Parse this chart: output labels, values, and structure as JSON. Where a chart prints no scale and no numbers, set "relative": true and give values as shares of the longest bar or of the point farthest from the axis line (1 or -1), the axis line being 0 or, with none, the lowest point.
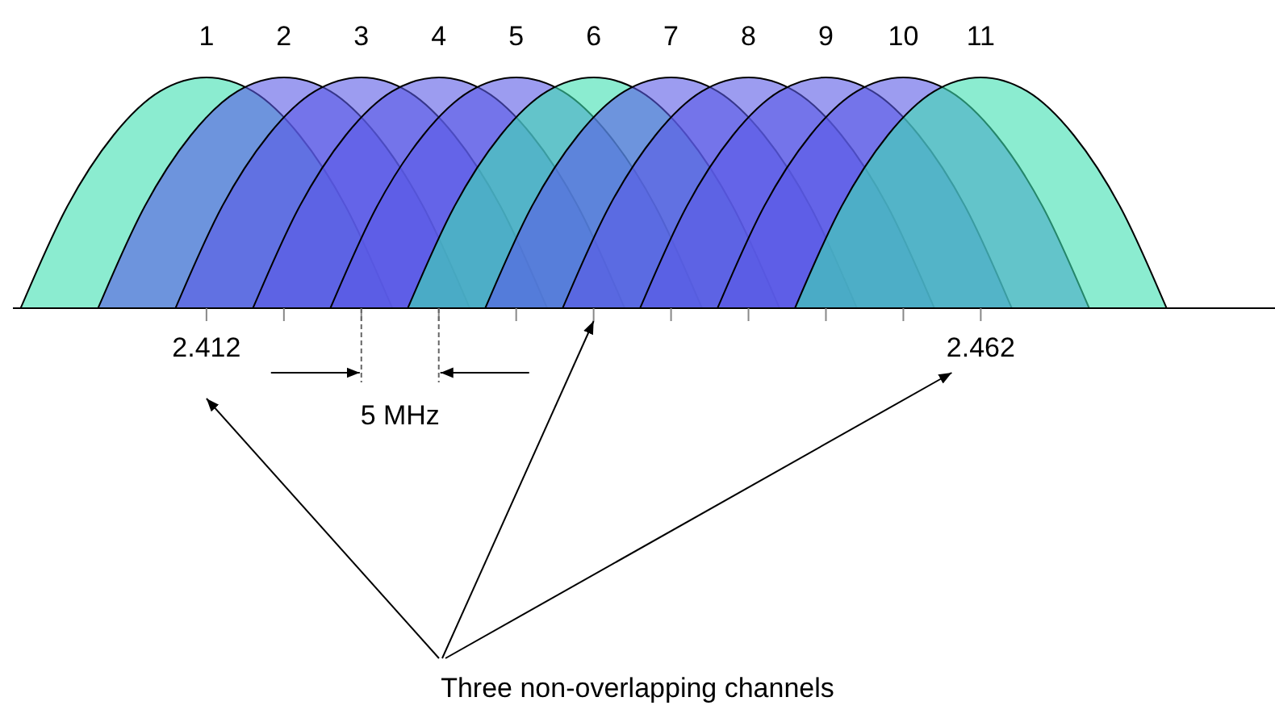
{
  "chart_data": {
    "type": "area",
    "relative": true,
    "xlim": [
      2.3995,
      2.481
    ],
    "xticks": [
      {
        "value": 2.412,
        "label": "2.412"
      },
      {
        "value": 2.417,
        "label": null
      },
      {
        "value": 2.422,
        "label": null
      },
      {
        "value": 2.427,
        "label": null
      },
      {
        "value": 2.432,
        "label": null
      },
      {
        "value": 2.437,
        "label": null
      },
      {
        "value": 2.442,
        "label": null
      },
      {
        "value": 2.447,
        "label": null
      },
      {
        "value": 2.452,
        "label": null
      },
      {
        "value": 2.457,
        "label": null
      },
      {
        "value": 2.462,
        "label": "2.462"
      }
    ],
    "series": [
      {
        "name": "1",
        "color": "#3ee0b0",
        "x": [
          2.4,
          2.403,
          2.406,
          2.409,
          2.412,
          2.415,
          2.418,
          2.421,
          2.424
        ],
        "values": [
          0,
          0.44,
          0.75,
          0.94,
          1,
          0.94,
          0.75,
          0.44,
          0
        ]
      },
      {
        "name": "2",
        "color": "#5a5ae6",
        "x": [
          2.405,
          2.408,
          2.411,
          2.414,
          2.417,
          2.42,
          2.423,
          2.426,
          2.429
        ],
        "values": [
          0,
          0.44,
          0.75,
          0.94,
          1,
          0.94,
          0.75,
          0.44,
          0
        ]
      },
      {
        "name": "3",
        "color": "#5a5ae6",
        "x": [
          2.41,
          2.413,
          2.416,
          2.419,
          2.422,
          2.425,
          2.428,
          2.431,
          2.434
        ],
        "values": [
          0,
          0.44,
          0.75,
          0.94,
          1,
          0.94,
          0.75,
          0.44,
          0
        ]
      },
      {
        "name": "4",
        "color": "#5a5ae6",
        "x": [
          2.415,
          2.418,
          2.421,
          2.424,
          2.427,
          2.43,
          2.433,
          2.436,
          2.439
        ],
        "values": [
          0,
          0.44,
          0.75,
          0.94,
          1,
          0.94,
          0.75,
          0.44,
          0
        ]
      },
      {
        "name": "5",
        "color": "#5a5ae6",
        "x": [
          2.42,
          2.423,
          2.426,
          2.429,
          2.432,
          2.435,
          2.438,
          2.441,
          2.444
        ],
        "values": [
          0,
          0.44,
          0.75,
          0.94,
          1,
          0.94,
          0.75,
          0.44,
          0
        ]
      },
      {
        "name": "6",
        "color": "#3ee0b0",
        "x": [
          2.425,
          2.428,
          2.431,
          2.434,
          2.437,
          2.44,
          2.443,
          2.446,
          2.449
        ],
        "values": [
          0,
          0.44,
          0.75,
          0.94,
          1,
          0.94,
          0.75,
          0.44,
          0
        ]
      },
      {
        "name": "7",
        "color": "#5a5ae6",
        "x": [
          2.43,
          2.433,
          2.436,
          2.439,
          2.442,
          2.445,
          2.448,
          2.451,
          2.454
        ],
        "values": [
          0,
          0.44,
          0.75,
          0.94,
          1,
          0.94,
          0.75,
          0.44,
          0
        ]
      },
      {
        "name": "8",
        "color": "#5a5ae6",
        "x": [
          2.435,
          2.438,
          2.441,
          2.444,
          2.447,
          2.45,
          2.453,
          2.456,
          2.459
        ],
        "values": [
          0,
          0.44,
          0.75,
          0.94,
          1,
          0.94,
          0.75,
          0.44,
          0
        ]
      },
      {
        "name": "9",
        "color": "#5a5ae6",
        "x": [
          2.44,
          2.443,
          2.446,
          2.449,
          2.452,
          2.455,
          2.458,
          2.461,
          2.464
        ],
        "values": [
          0,
          0.44,
          0.75,
          0.94,
          1,
          0.94,
          0.75,
          0.44,
          0
        ]
      },
      {
        "name": "10",
        "color": "#5a5ae6",
        "x": [
          2.445,
          2.448,
          2.451,
          2.454,
          2.457,
          2.46,
          2.463,
          2.466,
          2.469
        ],
        "values": [
          0,
          0.44,
          0.75,
          0.94,
          1,
          0.94,
          0.75,
          0.44,
          0
        ]
      },
      {
        "name": "11",
        "color": "#3ee0b0",
        "x": [
          2.45,
          2.453,
          2.456,
          2.459,
          2.462,
          2.465,
          2.468,
          2.471,
          2.474
        ],
        "values": [
          0,
          0.44,
          0.75,
          0.94,
          1,
          0.94,
          0.75,
          0.44,
          0
        ]
      }
    ],
    "annotations": [
      "5 MHz",
      "Three non-overlapping channels"
    ]
  }
}
